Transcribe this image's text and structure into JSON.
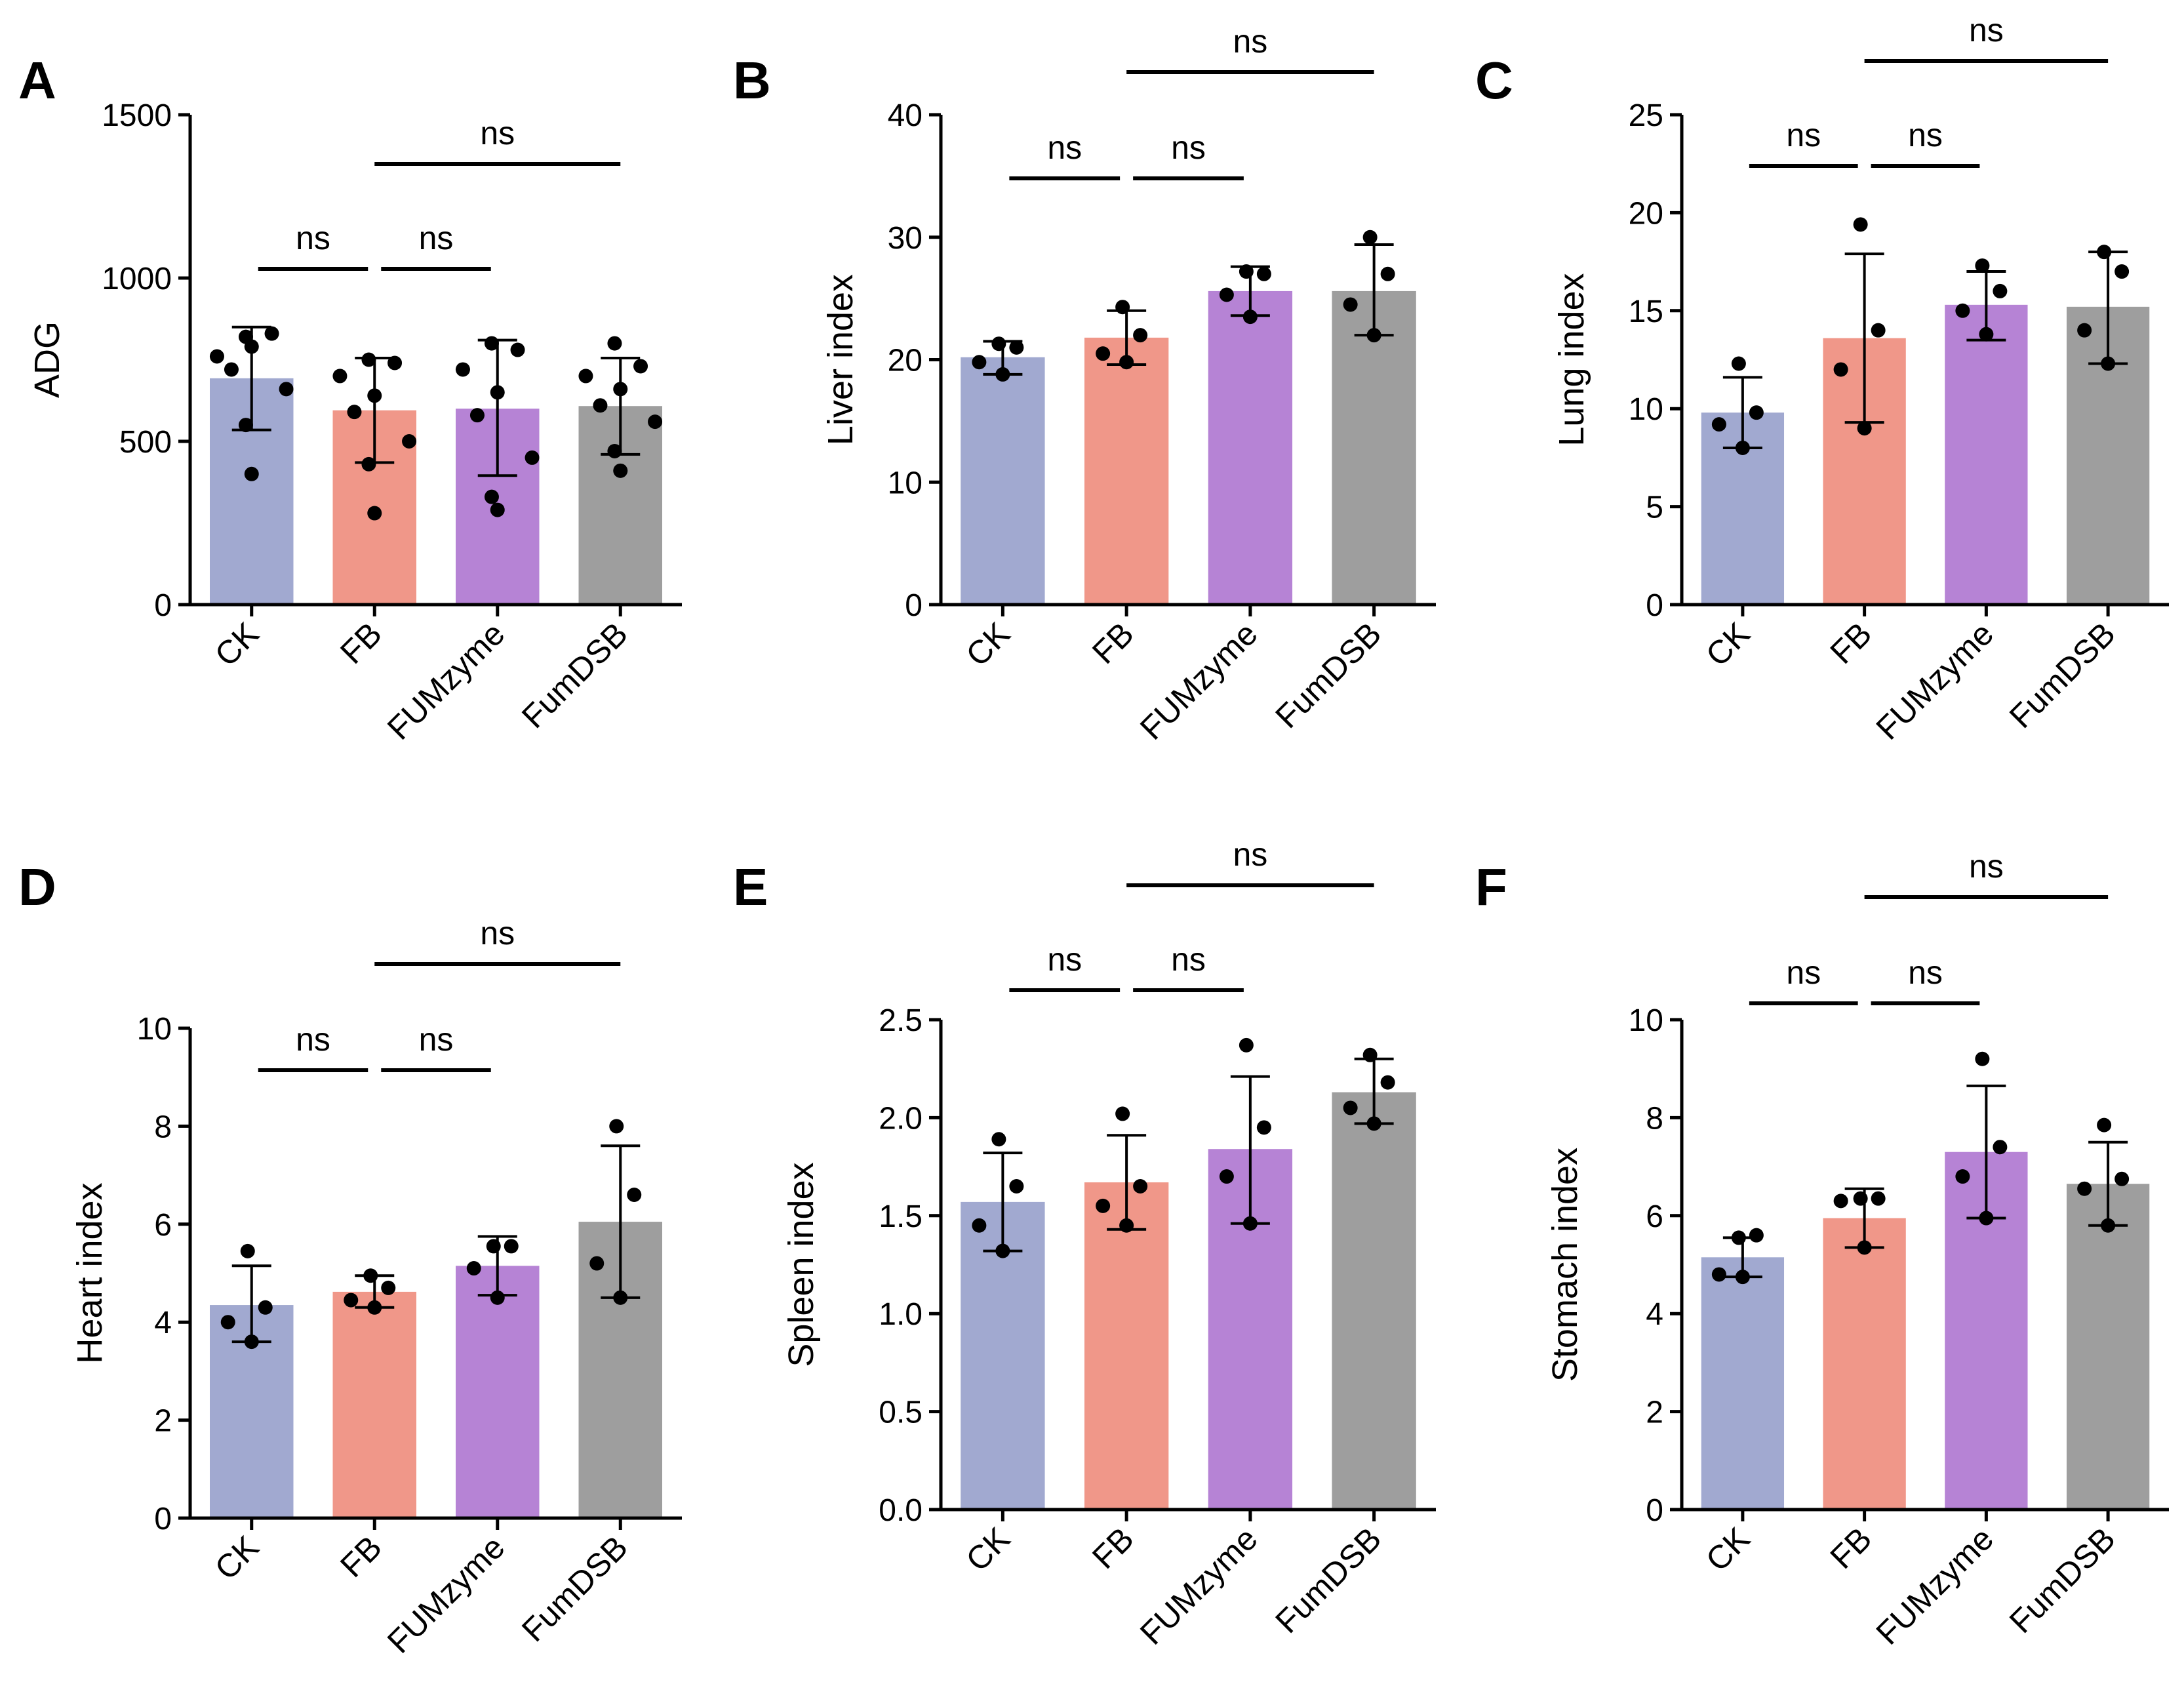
{
  "colors": {
    "CK": "#a1a9d0",
    "FB": "#f09789",
    "FUMzyme": "#b683d5",
    "FumDSB": "#9e9e9e",
    "ink": "#000000"
  },
  "chart_data": [
    {
      "panel": "A",
      "type": "bar",
      "ylabel": "ADG",
      "ylim": [
        0,
        1500
      ],
      "yticks": [
        0,
        500,
        1000,
        1500
      ],
      "categories": [
        "CK",
        "FB",
        "FUMzyme",
        "FumDSB"
      ],
      "values": [
        693,
        595,
        600,
        608
      ],
      "error_low": [
        535,
        435,
        395,
        460
      ],
      "error_high": [
        850,
        755,
        810,
        755
      ],
      "points": [
        [
          820,
          830,
          760,
          790,
          720,
          660,
          550,
          400
        ],
        [
          750,
          740,
          700,
          640,
          590,
          500,
          430,
          280
        ],
        [
          800,
          780,
          720,
          650,
          580,
          450,
          330,
          290
        ],
        [
          800,
          730,
          700,
          660,
          610,
          560,
          470,
          410
        ]
      ],
      "comparisons": [
        {
          "groups": [
            "CK",
            "FB"
          ],
          "label": "ns",
          "level": 1
        },
        {
          "groups": [
            "FB",
            "FUMzyme"
          ],
          "label": "ns",
          "level": 1
        },
        {
          "groups": [
            "FB",
            "FumDSB"
          ],
          "label": "ns",
          "level": 2
        }
      ]
    },
    {
      "panel": "B",
      "type": "bar",
      "ylabel": "Liver index",
      "ylim": [
        0,
        40
      ],
      "yticks": [
        0,
        10,
        20,
        30,
        40
      ],
      "categories": [
        "CK",
        "FB",
        "FUMzyme",
        "FumDSB"
      ],
      "values": [
        20.2,
        21.8,
        25.6,
        25.6
      ],
      "error_low": [
        18.8,
        19.6,
        23.6,
        22.0
      ],
      "error_high": [
        21.5,
        24.0,
        27.6,
        29.4
      ],
      "points": [
        [
          21.3,
          21.0,
          19.8,
          18.8
        ],
        [
          24.3,
          22.0,
          20.5,
          19.8
        ],
        [
          27.2,
          27.0,
          25.3,
          23.5
        ],
        [
          30.0,
          27.0,
          24.5,
          22.0
        ]
      ],
      "comparisons": [
        {
          "groups": [
            "CK",
            "FB"
          ],
          "label": "ns",
          "level": 1
        },
        {
          "groups": [
            "FB",
            "FUMzyme"
          ],
          "label": "ns",
          "level": 1
        },
        {
          "groups": [
            "FB",
            "FumDSB"
          ],
          "label": "ns",
          "level": 2
        }
      ]
    },
    {
      "panel": "C",
      "type": "bar",
      "ylabel": "Lung index",
      "ylim": [
        0,
        25
      ],
      "yticks": [
        0,
        5,
        10,
        15,
        20,
        25
      ],
      "categories": [
        "CK",
        "FB",
        "FUMzyme",
        "FumDSB"
      ],
      "values": [
        9.8,
        13.6,
        15.3,
        15.2
      ],
      "error_low": [
        8.0,
        9.3,
        13.5,
        12.3
      ],
      "error_high": [
        11.6,
        17.9,
        17.0,
        18.0
      ],
      "points": [
        [
          12.3,
          9.8,
          9.2,
          8.0
        ],
        [
          19.4,
          14.0,
          12.0,
          9.0
        ],
        [
          17.3,
          16.0,
          15.0,
          13.8
        ],
        [
          18.0,
          17.0,
          14.0,
          12.3
        ]
      ],
      "comparisons": [
        {
          "groups": [
            "CK",
            "FB"
          ],
          "label": "ns",
          "level": 1
        },
        {
          "groups": [
            "FB",
            "FUMzyme"
          ],
          "label": "ns",
          "level": 1
        },
        {
          "groups": [
            "FB",
            "FumDSB"
          ],
          "label": "ns",
          "level": 2
        }
      ]
    },
    {
      "panel": "D",
      "type": "bar",
      "ylabel": "Heart index",
      "ylim": [
        0,
        10
      ],
      "yticks": [
        0,
        2,
        4,
        6,
        8,
        10
      ],
      "categories": [
        "CK",
        "FB",
        "FUMzyme",
        "FumDSB"
      ],
      "values": [
        4.35,
        4.62,
        5.15,
        6.05
      ],
      "error_low": [
        3.6,
        4.3,
        4.55,
        4.5
      ],
      "error_high": [
        5.15,
        4.95,
        5.75,
        7.6
      ],
      "points": [
        [
          5.45,
          4.3,
          4.0,
          3.6
        ],
        [
          4.95,
          4.7,
          4.45,
          4.3
        ],
        [
          5.55,
          5.55,
          5.1,
          4.5
        ],
        [
          8.0,
          6.6,
          5.2,
          4.5
        ]
      ],
      "comparisons": [
        {
          "groups": [
            "CK",
            "FB"
          ],
          "label": "ns",
          "level": 1
        },
        {
          "groups": [
            "FB",
            "FUMzyme"
          ],
          "label": "ns",
          "level": 1
        },
        {
          "groups": [
            "FB",
            "FumDSB"
          ],
          "label": "ns",
          "level": 2
        }
      ]
    },
    {
      "panel": "E",
      "type": "bar",
      "ylabel": "Spleen index",
      "ylim": [
        0,
        2.5
      ],
      "yticks": [
        0.0,
        0.5,
        1.0,
        1.5,
        2.0,
        2.5
      ],
      "tick_format": "1dp",
      "categories": [
        "CK",
        "FB",
        "FUMzyme",
        "FumDSB"
      ],
      "values": [
        1.57,
        1.67,
        1.84,
        2.13
      ],
      "error_low": [
        1.32,
        1.43,
        1.46,
        1.97
      ],
      "error_high": [
        1.82,
        1.91,
        2.21,
        2.3
      ],
      "points": [
        [
          1.89,
          1.65,
          1.45,
          1.32
        ],
        [
          2.02,
          1.65,
          1.55,
          1.45
        ],
        [
          2.37,
          1.95,
          1.7,
          1.46
        ],
        [
          2.32,
          2.18,
          2.05,
          1.97
        ]
      ],
      "comparisons": [
        {
          "groups": [
            "CK",
            "FB"
          ],
          "label": "ns",
          "level": 1
        },
        {
          "groups": [
            "FB",
            "FUMzyme"
          ],
          "label": "ns",
          "level": 1
        },
        {
          "groups": [
            "FB",
            "FumDSB"
          ],
          "label": "ns",
          "level": 2
        }
      ]
    },
    {
      "panel": "F",
      "type": "bar",
      "ylabel": "Stomach index",
      "ylim": [
        0,
        10
      ],
      "yticks": [
        0,
        2,
        4,
        6,
        8,
        10
      ],
      "categories": [
        "CK",
        "FB",
        "FUMzyme",
        "FumDSB"
      ],
      "values": [
        5.15,
        5.95,
        7.3,
        6.65
      ],
      "error_low": [
        4.75,
        5.35,
        5.95,
        5.8
      ],
      "error_high": [
        5.55,
        6.55,
        8.65,
        7.5
      ],
      "points": [
        [
          5.55,
          5.6,
          4.8,
          4.75
        ],
        [
          6.35,
          6.35,
          6.3,
          5.35
        ],
        [
          9.2,
          7.4,
          6.8,
          5.95
        ],
        [
          7.85,
          6.75,
          6.55,
          5.8
        ]
      ],
      "comparisons": [
        {
          "groups": [
            "CK",
            "FB"
          ],
          "label": "ns",
          "level": 1
        },
        {
          "groups": [
            "FB",
            "FUMzyme"
          ],
          "label": "ns",
          "level": 1
        },
        {
          "groups": [
            "FB",
            "FumDSB"
          ],
          "label": "ns",
          "level": 2
        }
      ]
    }
  ]
}
